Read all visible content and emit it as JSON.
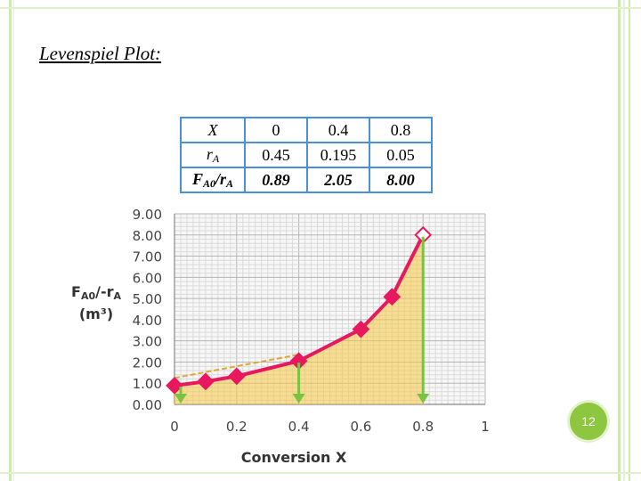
{
  "slide": {
    "title": "Levenspiel Plot:",
    "page_number": "12"
  },
  "table": {
    "rows": [
      {
        "label_main": "X",
        "label_sub": "",
        "values": [
          "0",
          "0.4",
          "0.8"
        ]
      },
      {
        "label_main": "r",
        "label_sub": "A",
        "values": [
          "0.45",
          "0.195",
          "0.05"
        ]
      },
      {
        "label_main": "F",
        "label_sub": "A0",
        "label_mid": "/r",
        "label_sub2": "A",
        "values": [
          "0.89",
          "2.05",
          "8.00"
        ]
      }
    ]
  },
  "chart_data": {
    "type": "line",
    "xlabel": "Conversion X",
    "ylabel_line1": "F",
    "ylabel_sub": "A0",
    "ylabel_rest": "/-r",
    "ylabel_sub2": "A",
    "ylabel_line2": "(m³)",
    "xlim": [
      0,
      1
    ],
    "ylim": [
      0,
      9
    ],
    "x_ticks": [
      "0",
      "0.2",
      "0.4",
      "0.6",
      "0.8",
      "1"
    ],
    "y_ticks": [
      "0.00",
      "1.00",
      "2.00",
      "3.00",
      "4.00",
      "5.00",
      "6.00",
      "7.00",
      "8.00",
      "9.00"
    ],
    "grid": true,
    "series": [
      {
        "color": "#e8185f",
        "x": [
          0,
          0.1,
          0.2,
          0.4,
          0.6,
          0.7,
          0.8
        ],
        "y": [
          0.89,
          1.08,
          1.33,
          2.05,
          3.55,
          5.08,
          8.0
        ]
      }
    ],
    "shaded_area": {
      "from": 0,
      "to": 0.8,
      "color": "#f5c842"
    },
    "trapezoid_line": {
      "x": [
        0,
        0.4
      ],
      "y": [
        1.25,
        2.35
      ],
      "color": "#e0a830"
    },
    "arrows": {
      "color": "#7cc242",
      "x": [
        0.02,
        0.4,
        0.8
      ]
    }
  },
  "colors": {
    "accent_green": "#8dc63f",
    "table_border": "#4a90d9",
    "curve": "#e8185f"
  }
}
